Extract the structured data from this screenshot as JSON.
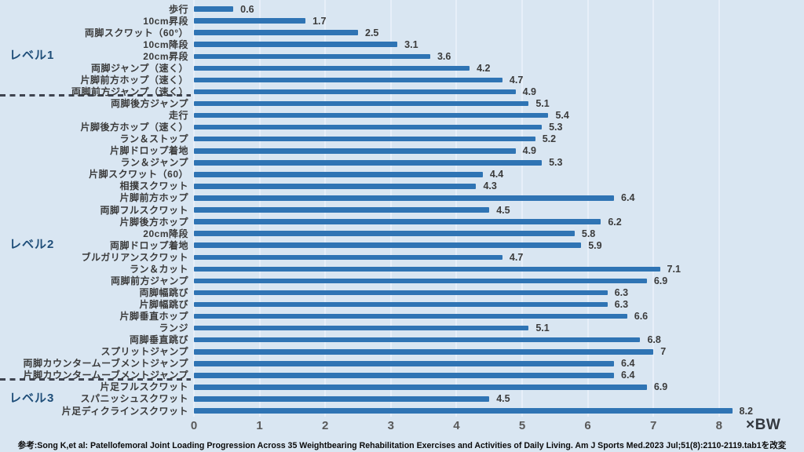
{
  "colors": {
    "background": "#d9e6f2",
    "bar": "#2f74b4",
    "level_label": "#1f4e79",
    "gridline": "#e7eff9",
    "value_text": "#3b3b3b",
    "axis_text": "#595959",
    "divider": "#3f4450"
  },
  "chart_data": {
    "type": "bar",
    "orientation": "horizontal",
    "title": "",
    "xlabel_unit": "×BW",
    "xlim": [
      0,
      8.4
    ],
    "x_ticks": [
      "0",
      "1",
      "2",
      "3",
      "4",
      "5",
      "6",
      "7",
      "8"
    ],
    "grid": true,
    "categories": [
      "歩行",
      "10cm昇段",
      "両脚スクワット（60°）",
      "10cm降段",
      "20cm昇段",
      "両脚ジャンプ（速く）",
      "片脚前方ホップ（速く）",
      "両脚前方ジャンプ（速く）",
      "両脚後方ジャンプ",
      "走行",
      "片脚後方ホップ（速く）",
      "ラン＆ストップ",
      "片脚ドロップ着地",
      "ラン＆ジャンプ",
      "片脚スクワット（60）",
      "相撲スクワット",
      "片脚前方ホップ",
      "両脚フルスクワット",
      "片脚後方ホップ",
      "20cm降段",
      "両脚ドロップ着地",
      "ブルガリアンスクワット",
      "ラン＆カット",
      "両脚前方ジャンプ",
      "両脚幅跳び",
      "片脚幅跳び",
      "片脚垂直ホップ",
      "ランジ",
      "両脚垂直跳び",
      "スプリットジャンプ",
      "両脚カウンタームーブメントジャンプ",
      "片脚カウンタームーブメントジャンプ",
      "片足フルスクワット",
      "スパニッシュスクワット",
      "片足ディクラインスクワット"
    ],
    "values": [
      0.6,
      1.7,
      2.5,
      3.1,
      3.6,
      4.2,
      4.7,
      4.9,
      5.1,
      5.4,
      5.3,
      5.2,
      4.9,
      5.3,
      4.4,
      4.3,
      6.4,
      4.5,
      6.2,
      5.8,
      5.9,
      4.7,
      7.1,
      6.9,
      6.3,
      6.3,
      6.6,
      5.1,
      6.8,
      7,
      6.4,
      6.4,
      6.9,
      4.5,
      8.2
    ],
    "value_labels": [
      "0.6",
      "1.7",
      "2.5",
      "3.1",
      "3.6",
      "4.2",
      "4.7",
      "4.9",
      "5.1",
      "5.4",
      "5.3",
      "5.2",
      "4.9",
      "5.3",
      "4.4",
      "4.3",
      "6.4",
      "4.5",
      "6.2",
      "5.8",
      "5.9",
      "4.7",
      "7.1",
      "6.9",
      "6.3",
      "6.3",
      "6.6",
      "5.1",
      "6.8",
      "7",
      "6.4",
      "6.4",
      "6.9",
      "4.5",
      "8.2"
    ],
    "levels": [
      {
        "label": "レベル1",
        "row_index": 4
      },
      {
        "label": "レベル2",
        "row_index": 20
      },
      {
        "label": "レベル3",
        "row_index": 33
      }
    ],
    "dividers": [
      {
        "after_row_index": 7
      },
      {
        "after_row_index": 31
      }
    ]
  },
  "axis": {
    "unit_label": "×BW"
  },
  "footer": {
    "citation": "参考:Song K,et al: Patellofemoral Joint Loading Progression Across 35 Weightbearing Rehabilitation Exercises and Activities of Daily Living. Am J Sports Med.2023 Jul;51(8):2110-2119.tab1を改変"
  }
}
